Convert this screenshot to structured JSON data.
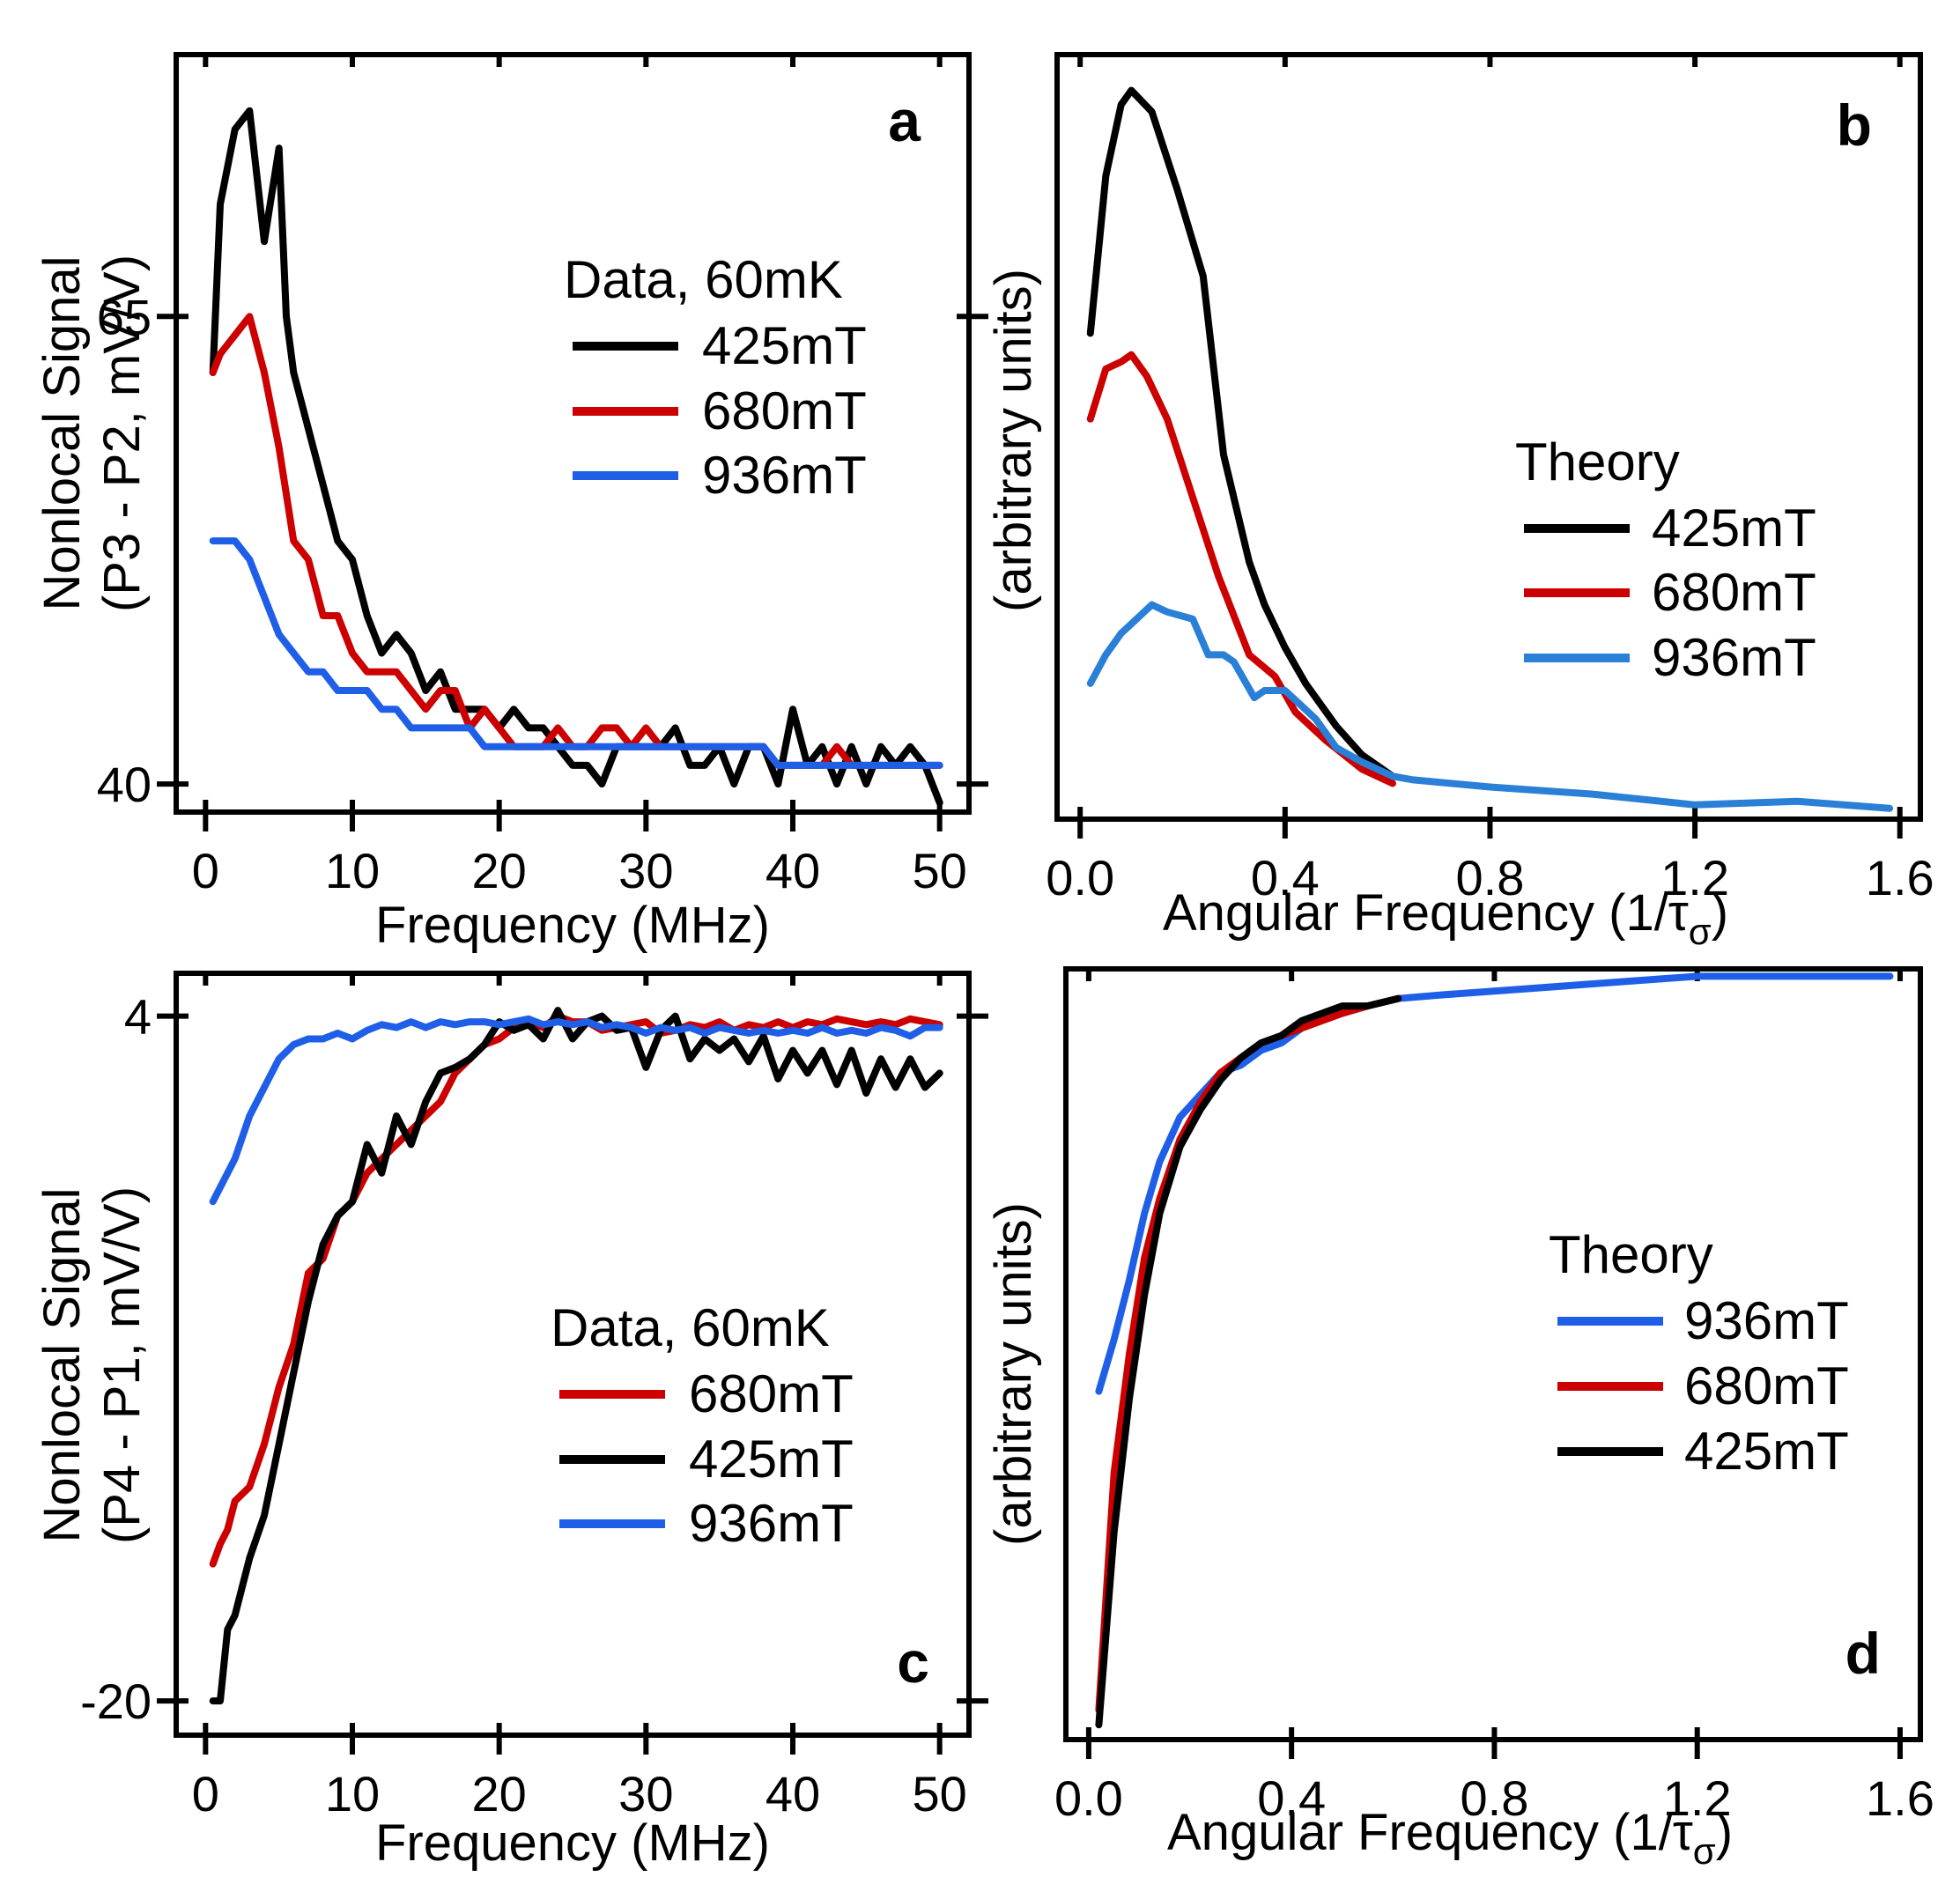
{
  "figure": {
    "description_id": "fig"
  },
  "colors": {
    "black": "#000000",
    "red": "#cc0000",
    "blue": "#1f5fe8",
    "blue_theory": "#2a7fd6"
  },
  "chart_data": [
    {
      "id": "a",
      "type": "line",
      "panel_label": "a",
      "xlabel": "Frequency (MHz)",
      "ylabel_line1": "Nonlocal Signal",
      "ylabel_line2": "(P3 - P2, mV/V)",
      "xlim": [
        -2,
        52
      ],
      "ylim": [
        38.5,
        79
      ],
      "x_ticks": [
        0,
        10,
        20,
        30,
        40,
        50
      ],
      "x_tick_labels": [
        "0",
        "10",
        "20",
        "30",
        "40",
        "50"
      ],
      "y_ticks": [
        40,
        65
      ],
      "y_tick_labels": [
        "40",
        "65"
      ],
      "legend_title": "Data, 60mK",
      "series": [
        {
          "name": "425mT",
          "color": "#000000",
          "x": [
            0.5,
            1,
            2,
            3,
            4,
            5,
            5.5,
            6,
            7,
            8,
            9,
            10,
            11,
            12,
            13,
            14,
            15,
            16,
            17,
            18,
            19,
            20,
            21,
            22,
            23,
            24,
            25,
            26,
            27,
            28,
            29,
            30,
            31,
            32,
            33,
            34,
            35,
            36,
            37,
            38,
            39,
            40,
            41,
            42,
            43,
            44,
            45,
            46,
            47,
            48,
            49,
            50
          ],
          "y": [
            62,
            71,
            75,
            76,
            69,
            74,
            65,
            62,
            59,
            56,
            53,
            52,
            49,
            47,
            48,
            47,
            45,
            46,
            44,
            44,
            44,
            43,
            44,
            43,
            43,
            42,
            41,
            41,
            40,
            42,
            42,
            42,
            42,
            43,
            41,
            41,
            42,
            40,
            42,
            42,
            40,
            44,
            41,
            42,
            40,
            42,
            40,
            42,
            41,
            42,
            41,
            39
          ]
        },
        {
          "name": "680mT",
          "color": "#cc0000",
          "x": [
            0.5,
            1,
            2,
            3,
            4,
            5,
            6,
            7,
            8,
            9,
            10,
            11,
            12,
            13,
            14,
            15,
            16,
            17,
            18,
            19,
            20,
            21,
            22,
            23,
            24,
            25,
            26,
            27,
            28,
            29,
            30,
            31,
            32,
            33,
            34,
            35,
            36,
            37,
            38,
            39,
            40,
            41,
            42,
            43,
            44,
            45,
            46,
            47,
            48,
            49,
            50
          ],
          "y": [
            62,
            63,
            64,
            65,
            62,
            58,
            53,
            52,
            49,
            49,
            47,
            46,
            46,
            46,
            45,
            44,
            45,
            45,
            43,
            44,
            43,
            42,
            42,
            42,
            43,
            42,
            42,
            43,
            43,
            42,
            43,
            42,
            42,
            42,
            42,
            42,
            42,
            42,
            42,
            41,
            41,
            41,
            41,
            42,
            41,
            41,
            41,
            41,
            41,
            41,
            41
          ]
        },
        {
          "name": "936mT",
          "color": "#1f5fe8",
          "x": [
            0.5,
            1,
            2,
            3,
            4,
            5,
            6,
            7,
            8,
            9,
            10,
            11,
            12,
            13,
            14,
            15,
            16,
            17,
            18,
            19,
            20,
            21,
            22,
            23,
            24,
            25,
            26,
            27,
            28,
            29,
            30,
            31,
            32,
            33,
            34,
            35,
            36,
            37,
            38,
            39,
            40,
            41,
            42,
            43,
            44,
            45,
            46,
            47,
            48,
            49,
            50
          ],
          "y": [
            53,
            53,
            53,
            52,
            50,
            48,
            47,
            46,
            46,
            45,
            45,
            45,
            44,
            44,
            43,
            43,
            43,
            43,
            43,
            42,
            42,
            42,
            42,
            42,
            42,
            42,
            42,
            42,
            42,
            42,
            42,
            42,
            42,
            42,
            42,
            42,
            42,
            42,
            42,
            41,
            41,
            41,
            41,
            41,
            41,
            41,
            41,
            41,
            41,
            41,
            41
          ]
        }
      ]
    },
    {
      "id": "b",
      "type": "line",
      "panel_label": "b",
      "xlabel": "Angular Frequency (1/τσ)",
      "xlabel_main": "Angular Frequency (1/τ",
      "xlabel_sub": "σ",
      "xlabel_close": ")",
      "ylabel": "(arbitrary units)",
      "xlim": [
        -0.045,
        1.64
      ],
      "ylim": [
        -0.02,
        1.05
      ],
      "x_ticks": [
        0.0,
        0.4,
        0.8,
        1.2,
        1.6
      ],
      "x_tick_labels": [
        "0.0",
        "0.4",
        "0.8",
        "1.2",
        "1.6"
      ],
      "legend_title": "Theory",
      "series": [
        {
          "name": "425mT",
          "color": "#000000",
          "x": [
            0.02,
            0.05,
            0.08,
            0.1,
            0.14,
            0.19,
            0.24,
            0.28,
            0.33,
            0.36,
            0.4,
            0.44,
            0.5,
            0.55,
            0.61
          ],
          "y": [
            0.66,
            0.88,
            0.98,
            1.0,
            0.97,
            0.86,
            0.74,
            0.49,
            0.34,
            0.28,
            0.22,
            0.17,
            0.11,
            0.07,
            0.04
          ]
        },
        {
          "name": "680mT",
          "color": "#cc0000",
          "x": [
            0.02,
            0.05,
            0.08,
            0.1,
            0.13,
            0.17,
            0.22,
            0.27,
            0.33,
            0.38,
            0.42,
            0.48,
            0.55,
            0.61
          ],
          "y": [
            0.54,
            0.61,
            0.62,
            0.63,
            0.6,
            0.54,
            0.43,
            0.32,
            0.21,
            0.18,
            0.13,
            0.09,
            0.05,
            0.03
          ]
        },
        {
          "name": "936mT",
          "color": "#2a7fd6",
          "x": [
            0.02,
            0.05,
            0.08,
            0.11,
            0.14,
            0.17,
            0.22,
            0.25,
            0.28,
            0.3,
            0.34,
            0.36,
            0.4,
            0.43,
            0.46,
            0.5,
            0.55,
            0.61,
            0.65,
            0.8,
            1.0,
            1.2,
            1.4,
            1.58
          ],
          "y": [
            0.17,
            0.21,
            0.24,
            0.26,
            0.28,
            0.27,
            0.26,
            0.21,
            0.21,
            0.2,
            0.15,
            0.16,
            0.16,
            0.14,
            0.12,
            0.08,
            0.06,
            0.04,
            0.035,
            0.025,
            0.015,
            0.0,
            0.005,
            -0.005
          ]
        }
      ]
    },
    {
      "id": "c",
      "type": "line",
      "panel_label": "c",
      "xlabel": "Frequency (MHz)",
      "ylabel_line1": "Nonlocal Signal",
      "ylabel_line2": "(P4 - P1, mV/V)",
      "xlim": [
        -2,
        52
      ],
      "ylim": [
        -21.2,
        5.5
      ],
      "x_ticks": [
        0,
        10,
        20,
        30,
        40,
        50
      ],
      "x_tick_labels": [
        "0",
        "10",
        "20",
        "30",
        "40",
        "50"
      ],
      "y_ticks": [
        -20,
        4
      ],
      "y_tick_labels": [
        "-20",
        "4"
      ],
      "legend_title": "Data, 60mK",
      "series": [
        {
          "name": "680mT",
          "color": "#cc0000",
          "x": [
            0.5,
            1,
            1.5,
            2,
            3,
            4,
            5,
            6,
            7,
            8,
            9,
            10,
            11,
            12,
            13,
            14,
            15,
            16,
            17,
            18,
            19,
            20,
            21,
            22,
            23,
            24,
            25,
            26,
            27,
            28,
            29,
            30,
            31,
            32,
            33,
            34,
            35,
            36,
            37,
            38,
            39,
            40,
            41,
            42,
            43,
            44,
            45,
            46,
            47,
            48,
            49,
            50
          ],
          "y": [
            -15.2,
            -14.5,
            -14,
            -13,
            -12.5,
            -11,
            -9,
            -7.5,
            -5,
            -4.5,
            -3,
            -2.5,
            -1.5,
            -1,
            -0.5,
            0,
            0.5,
            1,
            2,
            2.5,
            3,
            3.2,
            3.6,
            3.8,
            3.6,
            4,
            3.8,
            3.8,
            3.5,
            3.6,
            3.7,
            3.8,
            3.4,
            3.5,
            3.7,
            3.6,
            3.8,
            3.5,
            3.7,
            3.6,
            3.8,
            3.6,
            3.8,
            3.7,
            3.9,
            3.8,
            3.7,
            3.8,
            3.7,
            3.9,
            3.8,
            3.7
          ]
        },
        {
          "name": "425mT",
          "color": "#000000",
          "x": [
            0.5,
            1,
            1.5,
            2,
            3,
            4,
            5,
            6,
            7,
            8,
            9,
            10,
            11,
            12,
            13,
            14,
            15,
            16,
            17,
            18,
            19,
            20,
            21,
            22,
            23,
            24,
            25,
            26,
            27,
            28,
            29,
            30,
            31,
            32,
            33,
            34,
            35,
            36,
            37,
            38,
            39,
            40,
            41,
            42,
            43,
            44,
            45,
            46,
            47,
            48,
            49,
            50
          ],
          "y": [
            -20,
            -20,
            -17.5,
            -17,
            -15,
            -13.5,
            -11,
            -8.5,
            -6,
            -4,
            -3,
            -2.5,
            -0.5,
            -1.5,
            0.5,
            -0.5,
            1,
            2,
            2.2,
            2.5,
            3,
            3.8,
            3.5,
            3.7,
            3.2,
            4.2,
            3.2,
            3.8,
            4,
            3.5,
            3.6,
            2.2,
            3.5,
            4,
            2.5,
            3.2,
            2.8,
            3.2,
            2.4,
            3.3,
            1.8,
            2.8,
            2,
            2.8,
            1.6,
            2.8,
            1.3,
            2.5,
            1.5,
            2.5,
            1.5,
            2
          ]
        },
        {
          "name": "936mT",
          "color": "#1f5fe8",
          "x": [
            0.5,
            1,
            2,
            3,
            4,
            5,
            6,
            7,
            8,
            9,
            10,
            11,
            12,
            13,
            14,
            15,
            16,
            17,
            18,
            19,
            20,
            21,
            22,
            23,
            24,
            25,
            26,
            27,
            28,
            29,
            30,
            31,
            32,
            33,
            34,
            35,
            36,
            37,
            38,
            39,
            40,
            41,
            42,
            43,
            44,
            45,
            46,
            47,
            48,
            49,
            50
          ],
          "y": [
            -2.5,
            -2,
            -1,
            0.5,
            1.5,
            2.5,
            3,
            3.2,
            3.2,
            3.4,
            3.2,
            3.5,
            3.7,
            3.6,
            3.8,
            3.6,
            3.8,
            3.7,
            3.8,
            3.8,
            3.7,
            3.8,
            3.9,
            3.7,
            3.8,
            3.7,
            3.8,
            3.6,
            3.7,
            3.6,
            3.4,
            3.6,
            3.5,
            3.6,
            3.4,
            3.6,
            3.5,
            3.4,
            3.5,
            3.4,
            3.5,
            3.4,
            3.6,
            3.4,
            3.5,
            3.4,
            3.6,
            3.5,
            3.3,
            3.6,
            3.6
          ]
        }
      ]
    },
    {
      "id": "d",
      "type": "line",
      "panel_label": "d",
      "xlabel": "Angular Frequency (1/τσ)",
      "xlabel_main": "Angular Frequency (1/τ",
      "xlabel_sub": "σ",
      "xlabel_close": ")",
      "ylabel": "(arbitrary units)",
      "xlim": [
        -0.045,
        1.64
      ],
      "ylim": [
        -0.02,
        1.02
      ],
      "x_ticks": [
        0.0,
        0.4,
        0.8,
        1.2,
        1.6
      ],
      "x_tick_labels": [
        "0.0",
        "0.4",
        "0.8",
        "1.2",
        "1.6"
      ],
      "legend_title": "Theory",
      "series": [
        {
          "name": "936mT",
          "color": "#1f5fe8",
          "x": [
            0.02,
            0.05,
            0.08,
            0.11,
            0.14,
            0.18,
            0.22,
            0.26,
            0.3,
            0.34,
            0.38,
            0.42,
            0.46,
            0.5,
            0.55,
            0.61,
            0.7,
            0.8,
            1.0,
            1.2,
            1.4,
            1.58
          ],
          "y": [
            0.45,
            0.52,
            0.6,
            0.69,
            0.76,
            0.82,
            0.85,
            0.88,
            0.89,
            0.91,
            0.92,
            0.94,
            0.95,
            0.96,
            0.97,
            0.98,
            0.985,
            0.99,
            1.0,
            1.01,
            1.01,
            1.01
          ]
        },
        {
          "name": "680mT",
          "color": "#cc0000",
          "x": [
            0.02,
            0.05,
            0.08,
            0.11,
            0.14,
            0.18,
            0.22,
            0.26,
            0.3,
            0.34,
            0.38,
            0.42,
            0.46,
            0.5,
            0.55,
            0.61
          ],
          "y": [
            0.02,
            0.34,
            0.5,
            0.63,
            0.71,
            0.79,
            0.84,
            0.88,
            0.9,
            0.92,
            0.93,
            0.94,
            0.95,
            0.96,
            0.97,
            0.98
          ]
        },
        {
          "name": "425mT",
          "color": "#000000",
          "x": [
            0.02,
            0.05,
            0.08,
            0.11,
            0.14,
            0.18,
            0.22,
            0.26,
            0.3,
            0.34,
            0.38,
            0.42,
            0.46,
            0.5,
            0.55,
            0.61
          ],
          "y": [
            0.0,
            0.26,
            0.44,
            0.58,
            0.69,
            0.78,
            0.83,
            0.87,
            0.9,
            0.92,
            0.93,
            0.95,
            0.96,
            0.97,
            0.97,
            0.98
          ]
        }
      ]
    }
  ]
}
